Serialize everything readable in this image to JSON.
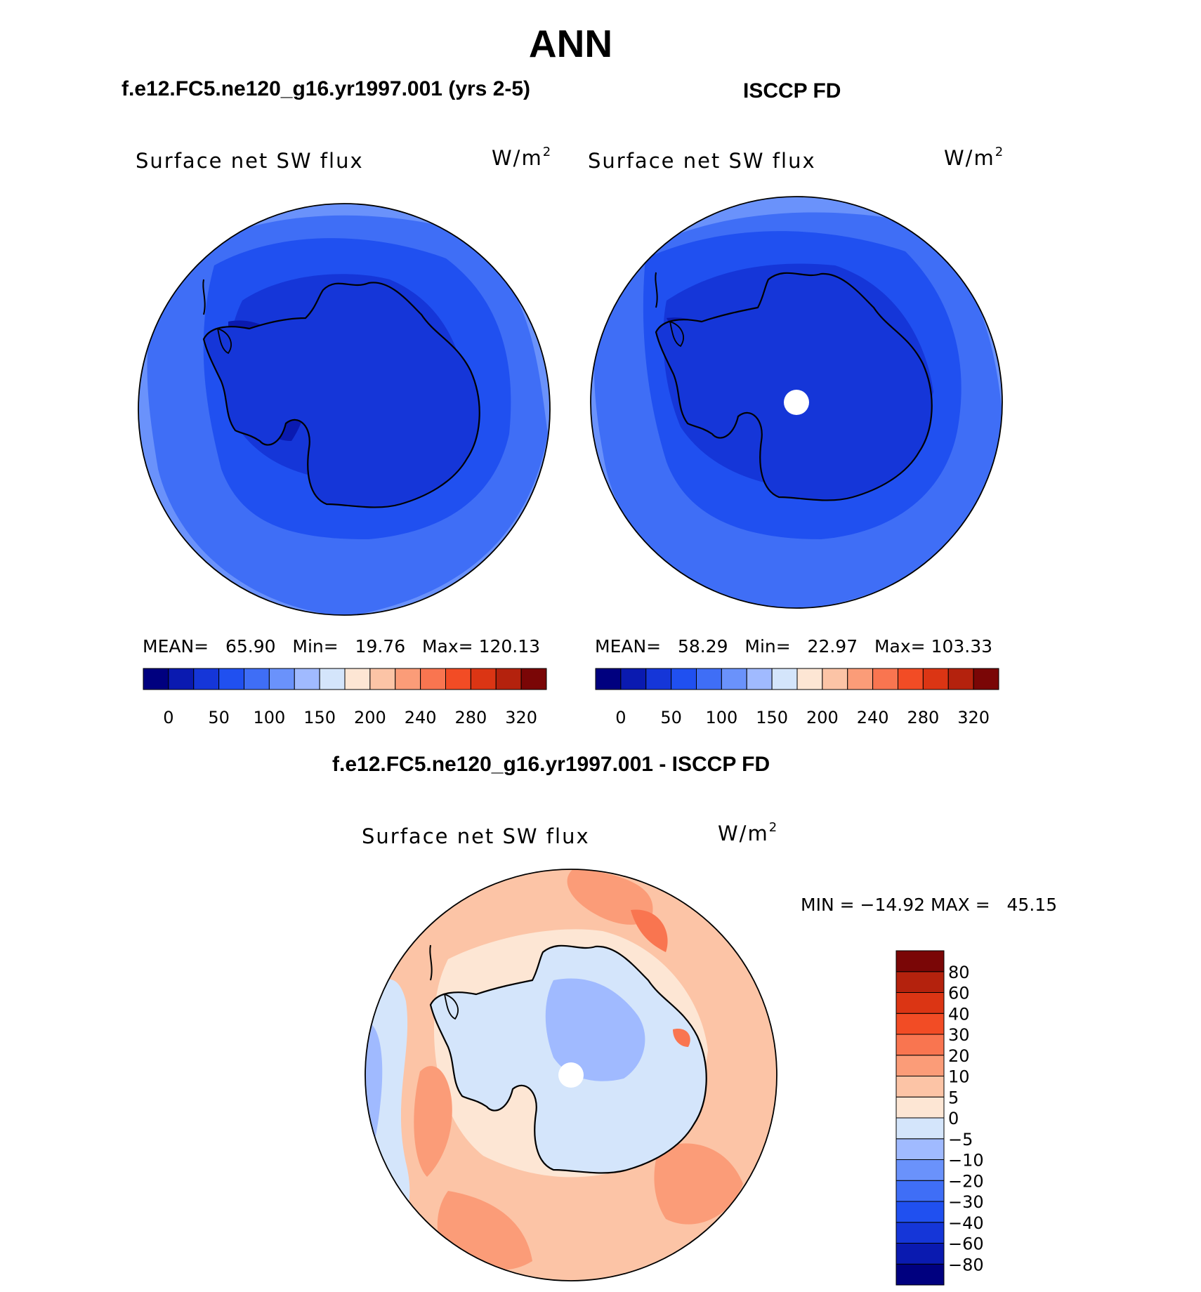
{
  "page_title": "ANN",
  "panels": [
    {
      "case_title": "f.e12.FC5.ne120_g16.yr1997.001 (yrs 2-5)",
      "variable": "Surface net SW flux",
      "units_base": "W/m",
      "units_exp": "2",
      "stats": {
        "mean_label": "MEAN=",
        "mean": "65.90",
        "min_label": "Min=",
        "min": "19.76",
        "max_label": "Max=",
        "max": "120.13"
      }
    },
    {
      "case_title": "ISCCP FD",
      "variable": "Surface net SW flux",
      "units_base": "W/m",
      "units_exp": "2",
      "stats": {
        "mean_label": "MEAN=",
        "mean": "58.29",
        "min_label": "Min=",
        "min": "22.97",
        "max_label": "Max=",
        "max": "103.33"
      }
    },
    {
      "case_title": "f.e12.FC5.ne120_g16.yr1997.001 - ISCCP FD",
      "variable": "Surface net SW flux",
      "units_base": "W/m",
      "units_exp": "2",
      "stats": {
        "min_label": "MIN =",
        "min": "−14.92",
        "max_label": "MAX =",
        "max": "45.15"
      }
    }
  ],
  "colorbar_abs": {
    "colors": [
      "#00007f",
      "#0a1ab0",
      "#1536d8",
      "#2050f0",
      "#3f6ef6",
      "#6a92fb",
      "#a0baff",
      "#d4e5fb",
      "#fde6d4",
      "#fcc4a6",
      "#fb9c78",
      "#f97550",
      "#f24c25",
      "#db3514",
      "#b4220d",
      "#7a0606"
    ],
    "ticks": [
      "0",
      "50",
      "100",
      "150",
      "200",
      "240",
      "280",
      "320"
    ]
  },
  "colorbar_diff": {
    "colors": [
      "#00007f",
      "#0a1ab0",
      "#1536d8",
      "#2050f0",
      "#3f6ef6",
      "#6a92fb",
      "#a0baff",
      "#d4e5fb",
      "#fde6d4",
      "#fcc4a6",
      "#fb9c78",
      "#f97550",
      "#f24c25",
      "#db3514",
      "#b4220d",
      "#7a0606"
    ],
    "ticks": [
      "−80",
      "−60",
      "−40",
      "−30",
      "−20",
      "−10",
      "−5",
      "0",
      "5",
      "10",
      "20",
      "30",
      "40",
      "60",
      "80"
    ]
  },
  "map_colors": {
    "ocean_outer": "#6a92fb",
    "ocean_mid": "#3f6ef6",
    "ocean_inner": "#2050f0",
    "ice_edge": "#1536d8",
    "continent": "#1536d8",
    "continent_dark": "#0a1ab0",
    "pole_hole": "#ffffff",
    "diff_ocean": "#fcc4a6",
    "diff_ocean_warm": "#fb9c78",
    "diff_hot": "#f97550",
    "diff_light": "#fde6d4",
    "diff_cool": "#d4e5fb",
    "diff_cooler": "#a0baff",
    "diff_cold": "#6a92fb",
    "coast": "#000000"
  }
}
